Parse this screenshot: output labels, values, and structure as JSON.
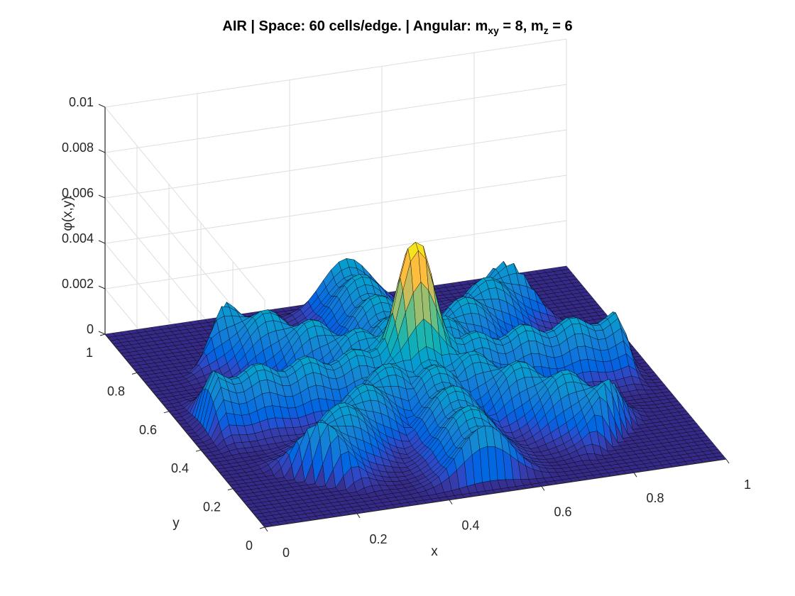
{
  "title": {
    "main": "AIR | Space: 60 cells/edge. | Angular: m",
    "sub1": "xy",
    "mid": " = 8, m",
    "sub2": "z",
    "end": " = 6"
  },
  "chart_data": {
    "type": "surface",
    "xlabel": "x",
    "ylabel": "y",
    "zlabel": "φ(x,y)",
    "x_ticks": [
      "0",
      "0.2",
      "0.4",
      "0.6",
      "0.8",
      "1"
    ],
    "y_ticks": [
      "0",
      "0.2",
      "0.4",
      "0.6",
      "0.8",
      "1"
    ],
    "z_ticks": [
      "0",
      "0.002",
      "0.004",
      "0.006",
      "0.008",
      "0.01"
    ],
    "xlim": [
      0,
      1
    ],
    "ylim": [
      0,
      1
    ],
    "zlim": [
      0,
      0.01
    ],
    "grid": true,
    "colormap": "parula",
    "grid_cells_per_edge": 60,
    "peak": {
      "x": 0.5,
      "y": 0.5,
      "value": 0.0068
    },
    "ray_ridges": {
      "count": 8,
      "directions_deg": [
        0,
        45,
        90,
        135,
        180,
        225,
        270,
        315
      ],
      "plateau_value": 0.0022,
      "ridge_width": 0.055,
      "ridge_end": 0.47
    },
    "background_value": 0.0
  }
}
